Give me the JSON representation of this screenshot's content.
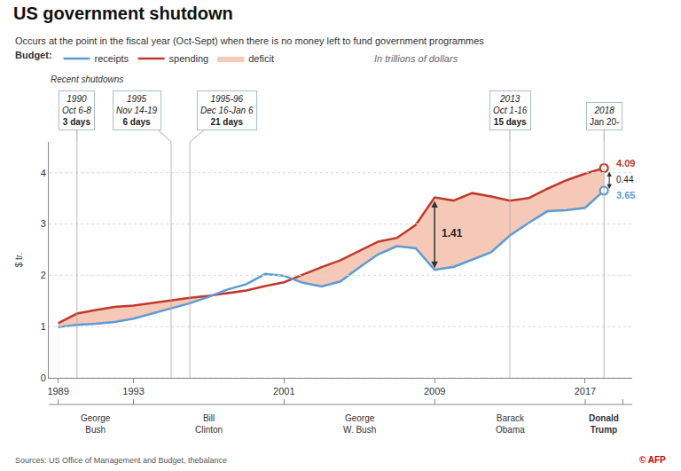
{
  "chart_data": {
    "type": "line",
    "title": "US government shutdown",
    "subtitle": "Occurs at the point in the fiscal year (Oct-Sept) when there is no money left to fund government programmes",
    "source": "Sources: US Office of Management and Budget, thebalance",
    "credit": {
      "text": "© AFP",
      "color": "#cc0000"
    },
    "ylabel": "$ tr.",
    "legend_title": "Budget:",
    "legend_note": "In trillions of dollars",
    "bg_color": "#ffffff",
    "x": [
      1989,
      1990,
      1991,
      1992,
      1993,
      1994,
      1995,
      1996,
      1997,
      1998,
      1999,
      2000,
      2001,
      2002,
      2003,
      2004,
      2005,
      2006,
      2007,
      2008,
      2009,
      2010,
      2011,
      2012,
      2013,
      2014,
      2015,
      2016,
      2017,
      2018
    ],
    "series": [
      {
        "name": "receipts",
        "color": "#5b9bd5",
        "values": [
          0.991,
          1.032,
          1.055,
          1.091,
          1.154,
          1.258,
          1.352,
          1.454,
          1.579,
          1.722,
          1.827,
          2.025,
          1.991,
          1.853,
          1.783,
          1.88,
          2.154,
          2.407,
          2.568,
          2.524,
          2.105,
          2.163,
          2.304,
          2.45,
          2.775,
          3.022,
          3.25,
          3.268,
          3.316,
          3.65
        ]
      },
      {
        "name": "spending",
        "color": "#c0392b",
        "values": [
          1.064,
          1.253,
          1.324,
          1.382,
          1.409,
          1.461,
          1.516,
          1.561,
          1.601,
          1.652,
          1.702,
          1.789,
          1.863,
          2.011,
          2.16,
          2.293,
          2.472,
          2.655,
          2.729,
          2.983,
          3.518,
          3.457,
          3.603,
          3.537,
          3.455,
          3.506,
          3.688,
          3.853,
          3.982,
          4.09
        ]
      }
    ],
    "fill": {
      "name": "deficit",
      "color": "#f5c8b8",
      "lower": "receipts",
      "upper": "spending"
    },
    "annotations": [
      {
        "text": "4.09",
        "series": "spending",
        "x": 2018
      },
      {
        "text": "3.65",
        "series": "receipts",
        "x": 2018
      },
      {
        "text": "0.44",
        "between": [
          "receipts",
          "spending"
        ],
        "x": 2018
      },
      {
        "text": "1.41",
        "between": [
          "receipts",
          "spending"
        ],
        "x": 2009
      }
    ],
    "shutdowns": {
      "label": "Recent shutdowns",
      "color": "#aaaaaa",
      "items": [
        {
          "x": 1990,
          "lines": [
            "1990",
            "Oct 6-8",
            "3 days"
          ]
        },
        {
          "x": 1995,
          "lines": [
            "1995",
            "Nov 14-19",
            "6 days"
          ]
        },
        {
          "x": 1996,
          "lines": [
            "1995-96",
            "Dec 16-Jan 6",
            "21 days"
          ]
        },
        {
          "x": 2013,
          "lines": [
            "2013",
            "Oct 1-16",
            "15 days"
          ]
        },
        {
          "x": 2018,
          "lines": [
            "2018",
            "Jan 20-"
          ]
        }
      ]
    },
    "presidents": [
      {
        "name": "George\nBush",
        "start": 1989,
        "end": 1993
      },
      {
        "name": "Bill\nClinton",
        "start": 1993,
        "end": 2001
      },
      {
        "name": "George\nW. Bush",
        "start": 2001,
        "end": 2009
      },
      {
        "name": "Barack\nObama",
        "start": 2009,
        "end": 2017
      },
      {
        "name": "Donald\nTrump",
        "start": 2017,
        "end": 2019
      }
    ],
    "xlim": [
      1988.5,
      2019.5
    ],
    "xticks": [
      1989,
      1993,
      2001,
      2009,
      2017
    ],
    "ylim": [
      0,
      4.6
    ],
    "yticks": [
      0,
      1,
      2,
      3,
      4
    ],
    "grid": true
  }
}
